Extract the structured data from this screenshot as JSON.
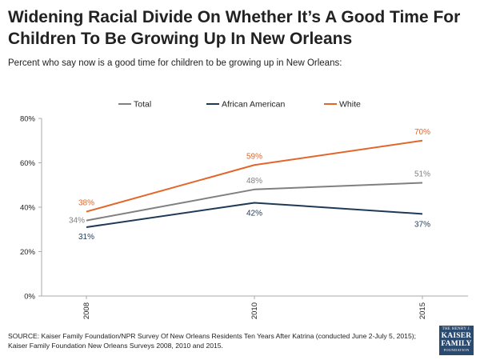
{
  "header": {
    "title": "Widening Racial Divide On Whether It’s A Good Time For Children To Be Growing Up In New Orleans",
    "subtitle": "Percent who say now is a good time for children to be growing up in New Orleans:"
  },
  "colors": {
    "total": "#808080",
    "african_american": "#1f3a56",
    "white": "#e2662a",
    "axis": "#aaaaaa",
    "text": "#222222",
    "logo_bg": "#2b4a6f"
  },
  "chart_data": {
    "type": "line",
    "title": "",
    "xlabel": "",
    "ylabel": "",
    "categories": [
      "2008",
      "2010",
      "2015"
    ],
    "ylim": [
      0,
      80
    ],
    "yticks": [
      0,
      20,
      40,
      60,
      80
    ],
    "ytick_labels": [
      "0%",
      "20%",
      "40%",
      "60%",
      "80%"
    ],
    "grid": false,
    "legend_position": "top",
    "series": [
      {
        "name": "Total",
        "color": "#808080",
        "values": [
          34,
          48,
          51
        ],
        "labels": [
          "34%",
          "48%",
          "51%"
        ]
      },
      {
        "name": "African American",
        "color": "#1f3a56",
        "values": [
          31,
          42,
          37
        ],
        "labels": [
          "31%",
          "42%",
          "37%"
        ]
      },
      {
        "name": "White",
        "color": "#e2662a",
        "values": [
          38,
          59,
          70
        ],
        "labels": [
          "38%",
          "59%",
          "70%"
        ]
      }
    ]
  },
  "footer": {
    "source": "SOURCE: Kaiser Family Foundation/NPR Survey Of New Orleans Residents Ten Years After Katrina (conducted June 2-July 5, 2015); Kaiser Family Foundation New Orleans Surveys 2008, 2010 and 2015.",
    "logo_top": "THE HENRY J.",
    "logo_main_1": "KAISER",
    "logo_main_2": "FAMILY",
    "logo_bottom": "FOUNDATION"
  }
}
